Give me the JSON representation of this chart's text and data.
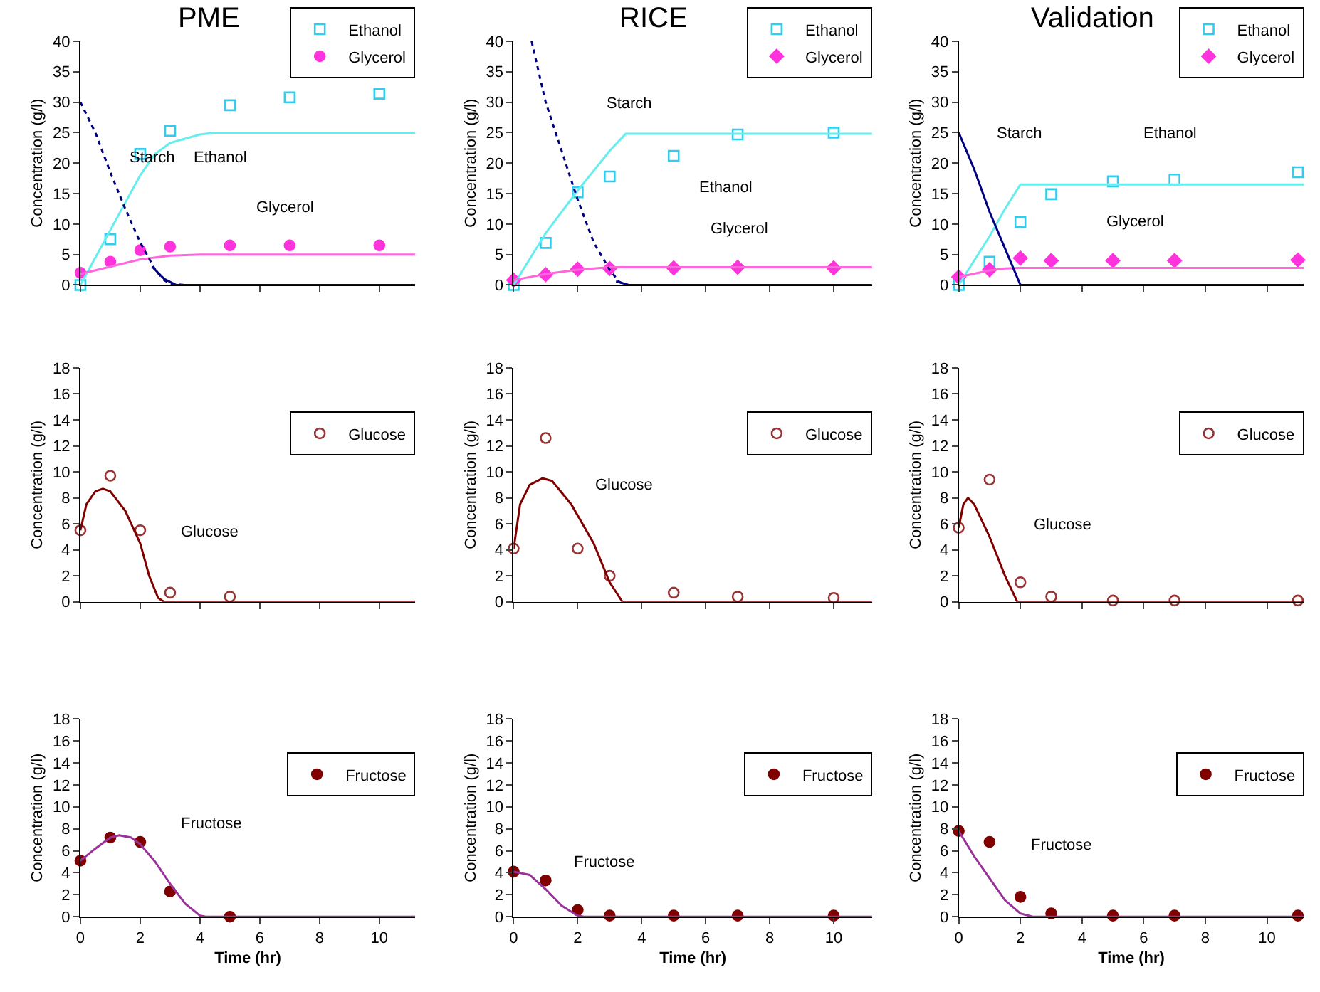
{
  "chart_data": [
    {
      "type": "scatter",
      "title": "PME",
      "ylabel": "Concentration (g/l)",
      "xlim": [
        0,
        11.2
      ],
      "xticks": [
        0,
        2,
        4,
        6,
        8,
        10
      ],
      "ylim": [
        0,
        40
      ],
      "yticks": [
        0,
        5,
        10,
        15,
        20,
        25,
        30,
        35,
        40
      ],
      "tick_labels": "y",
      "legend": "top right",
      "series": [
        {
          "name": "Ethanol",
          "type": "scatter",
          "marker": "square-open",
          "color": "#33ccee",
          "x": [
            0,
            1,
            2,
            3,
            5,
            7,
            10
          ],
          "values": [
            0,
            7.5,
            21.5,
            25.3,
            29.5,
            30.8,
            31.4
          ]
        },
        {
          "name": "Glycerol",
          "type": "scatter",
          "marker": "circle",
          "color": "#ff33dd",
          "x": [
            0,
            1,
            2,
            3,
            5,
            7,
            10
          ],
          "values": [
            2.0,
            3.8,
            5.7,
            6.3,
            6.5,
            6.5,
            6.5
          ]
        },
        {
          "type": "line",
          "line_style": "solid",
          "color": "#66eeee",
          "x": [
            0,
            1,
            2,
            2.5,
            3,
            3.5,
            4,
            4.5,
            11.2
          ],
          "values": [
            0,
            9,
            18,
            21.5,
            23.3,
            24,
            24.7,
            25,
            25
          ]
        },
        {
          "type": "line",
          "line_style": "solid",
          "color": "#ff66dd",
          "x": [
            0,
            1,
            2,
            3,
            4,
            11.2
          ],
          "values": [
            1.8,
            3,
            4.2,
            4.8,
            5,
            5
          ]
        },
        {
          "type": "line",
          "line_style": "dotted",
          "color": "#000080",
          "x": [
            0,
            0.5,
            1,
            1.5,
            2,
            2.5,
            2.8,
            3,
            3.5
          ],
          "values": [
            30,
            25,
            18.5,
            12.5,
            7,
            2.5,
            0.8,
            0.2,
            0
          ]
        },
        {
          "type": "line",
          "line_style": "solid",
          "color": "#000080",
          "x": [
            2.4,
            2.8,
            3.2,
            11.2
          ],
          "values": [
            3,
            1,
            0,
            0
          ]
        }
      ],
      "annotations": [
        "Starch",
        "Ethanol",
        "Glycerol"
      ]
    },
    {
      "type": "scatter",
      "title": "RICE",
      "ylabel": "Concentration (g/l)",
      "xlim": [
        0,
        11.2
      ],
      "xticks": [
        0,
        2,
        4,
        6,
        8,
        10
      ],
      "ylim": [
        0,
        40
      ],
      "yticks": [
        0,
        5,
        10,
        15,
        20,
        25,
        30,
        35,
        40
      ],
      "tick_labels": "y",
      "legend": "top right",
      "series": [
        {
          "name": "Ethanol",
          "type": "scatter",
          "marker": "square-open",
          "color": "#33ccee",
          "x": [
            0,
            1,
            2,
            3,
            5,
            7,
            10
          ],
          "values": [
            0,
            6.9,
            15.2,
            17.8,
            21.2,
            24.7,
            25
          ]
        },
        {
          "name": "Glycerol",
          "type": "scatter",
          "marker": "diamond",
          "color": "#ff33dd",
          "x": [
            0,
            1,
            2,
            3,
            5,
            7,
            10
          ],
          "values": [
            0.8,
            1.7,
            2.6,
            2.7,
            2.8,
            2.9,
            2.8
          ]
        },
        {
          "type": "line",
          "line_style": "solid",
          "color": "#66eeee",
          "x": [
            0,
            1,
            2,
            3,
            3.5,
            11.2
          ],
          "values": [
            0,
            8.5,
            15.5,
            22,
            24.8,
            24.8
          ]
        },
        {
          "type": "line",
          "line_style": "solid",
          "color": "#ff66dd",
          "x": [
            0,
            1,
            2,
            3,
            11.2
          ],
          "values": [
            0.8,
            1.8,
            2.5,
            2.9,
            2.9
          ]
        },
        {
          "type": "line",
          "line_style": "dotted",
          "color": "#000080",
          "x": [
            0.56,
            1,
            1.5,
            2,
            2.5,
            3,
            3.3,
            3.5
          ],
          "values": [
            40,
            30,
            22,
            14,
            7,
            2.5,
            0.5,
            0
          ]
        },
        {
          "type": "line",
          "line_style": "solid",
          "color": "#000080",
          "x": [
            3.2,
            3.6,
            11.2
          ],
          "values": [
            0.6,
            0,
            0
          ]
        }
      ],
      "annotations": [
        "Starch",
        "Ethanol",
        "Glycerol"
      ]
    },
    {
      "type": "scatter",
      "title": "Validation",
      "ylabel": "Concentration (g/l)",
      "xlim": [
        0,
        11.2
      ],
      "xticks": [
        0,
        2,
        4,
        6,
        8,
        10
      ],
      "ylim": [
        0,
        40
      ],
      "yticks": [
        0,
        5,
        10,
        15,
        20,
        25,
        30,
        35,
        40
      ],
      "tick_labels": "y",
      "legend": "top right",
      "series": [
        {
          "name": "Ethanol",
          "type": "scatter",
          "marker": "square-open",
          "color": "#33ccee",
          "x": [
            0,
            1,
            2,
            3,
            5,
            7,
            11
          ],
          "values": [
            0,
            3.8,
            10.3,
            14.9,
            17,
            17.3,
            18.5
          ]
        },
        {
          "name": "Glycerol",
          "type": "scatter",
          "marker": "diamond",
          "color": "#ff33dd",
          "x": [
            0,
            1,
            2,
            3,
            5,
            7,
            11
          ],
          "values": [
            1.3,
            2.5,
            4.4,
            4,
            4,
            4,
            4.1
          ]
        },
        {
          "type": "line",
          "line_style": "solid",
          "color": "#66eeee",
          "x": [
            0,
            1,
            1.5,
            2,
            11.2
          ],
          "values": [
            0,
            8,
            12.5,
            16.5,
            16.5
          ]
        },
        {
          "type": "line",
          "line_style": "solid",
          "color": "#ff66dd",
          "x": [
            0,
            1,
            1.5,
            2,
            11.2
          ],
          "values": [
            1.3,
            2.4,
            2.7,
            2.8,
            2.8
          ]
        },
        {
          "type": "line",
          "line_style": "solid",
          "color": "#000080",
          "x": [
            0,
            0.5,
            1,
            1.5,
            2,
            11.2
          ],
          "values": [
            25,
            19,
            12,
            6,
            0,
            0
          ]
        }
      ],
      "annotations": [
        "Starch",
        "Ethanol",
        "Glycerol"
      ]
    },
    {
      "type": "scatter",
      "ylabel": "Concentration (g/l)",
      "xlim": [
        0,
        11.2
      ],
      "xticks": [
        0,
        2,
        4,
        6,
        8,
        10
      ],
      "ylim": [
        0,
        18
      ],
      "yticks": [
        0,
        2,
        4,
        6,
        8,
        10,
        12,
        14,
        16,
        18
      ],
      "tick_labels": "y",
      "legend": "right",
      "series": [
        {
          "name": "Glucose",
          "type": "scatter",
          "marker": "circle-open",
          "color": "#993333",
          "x": [
            0,
            1,
            2,
            3,
            5
          ],
          "values": [
            5.5,
            9.7,
            5.5,
            0.7,
            0.4
          ]
        },
        {
          "type": "line",
          "line_style": "solid",
          "color": "#800000",
          "x": [
            0,
            0.2,
            0.5,
            0.75,
            1,
            1.5,
            2,
            2.3,
            2.6,
            2.8,
            11.2
          ],
          "values": [
            5.5,
            7.5,
            8.5,
            8.7,
            8.5,
            7,
            4.5,
            2,
            0.3,
            0,
            0
          ]
        }
      ],
      "annotations": [
        "Glucose"
      ]
    },
    {
      "type": "scatter",
      "ylabel": "Concentration (g/l)",
      "xlim": [
        0,
        11.2
      ],
      "xticks": [
        0,
        2,
        4,
        6,
        8,
        10
      ],
      "ylim": [
        0,
        18
      ],
      "yticks": [
        0,
        2,
        4,
        6,
        8,
        10,
        12,
        14,
        16,
        18
      ],
      "tick_labels": "y",
      "legend": "right",
      "series": [
        {
          "name": "Glucose",
          "type": "scatter",
          "marker": "circle-open",
          "color": "#993333",
          "x": [
            0,
            1,
            2,
            3,
            5,
            7,
            10
          ],
          "values": [
            4.1,
            12.6,
            4.1,
            2.0,
            0.7,
            0.4,
            0.3
          ]
        },
        {
          "type": "line",
          "line_style": "solid",
          "color": "#800000",
          "x": [
            0,
            0.2,
            0.5,
            0.9,
            1.2,
            1.8,
            2.5,
            3,
            3.4,
            11.2
          ],
          "values": [
            4.1,
            7.5,
            9,
            9.5,
            9.3,
            7.5,
            4.5,
            1.5,
            0,
            0
          ]
        }
      ],
      "annotations": [
        "Glucose"
      ]
    },
    {
      "type": "scatter",
      "ylabel": "Concentration (g/l)",
      "xlim": [
        0,
        11.2
      ],
      "xticks": [
        0,
        2,
        4,
        6,
        8,
        10
      ],
      "ylim": [
        0,
        18
      ],
      "yticks": [
        0,
        2,
        4,
        6,
        8,
        10,
        12,
        14,
        16,
        18
      ],
      "tick_labels": "y",
      "legend": "right",
      "series": [
        {
          "name": "Glucose",
          "type": "scatter",
          "marker": "circle-open",
          "color": "#993333",
          "x": [
            0,
            1,
            2,
            3,
            5,
            7,
            11
          ],
          "values": [
            5.7,
            9.4,
            1.5,
            0.4,
            0.1,
            0.1,
            0.1
          ]
        },
        {
          "type": "line",
          "line_style": "solid",
          "color": "#800000",
          "x": [
            0,
            0.15,
            0.3,
            0.5,
            1,
            1.5,
            1.9,
            11.2
          ],
          "values": [
            5.7,
            7.5,
            8,
            7.5,
            5,
            2,
            0,
            0
          ]
        }
      ],
      "annotations": [
        "Glucose"
      ]
    },
    {
      "type": "scatter",
      "ylabel": "Concentration (g/l)",
      "xlabel": "Time (hr)",
      "xlim": [
        0,
        11.2
      ],
      "xticks": [
        0,
        2,
        4,
        6,
        8,
        10
      ],
      "ylim": [
        0,
        18
      ],
      "yticks": [
        0,
        2,
        4,
        6,
        8,
        10,
        12,
        14,
        16,
        18
      ],
      "legend": "right",
      "series": [
        {
          "name": "Fructose",
          "type": "scatter",
          "marker": "circle",
          "color": "#800000",
          "x": [
            0,
            1,
            2,
            3,
            5
          ],
          "values": [
            5.1,
            7.2,
            6.8,
            2.3,
            0
          ]
        },
        {
          "type": "line",
          "line_style": "solid",
          "color": "#993399",
          "x": [
            0,
            0.5,
            1,
            1.3,
            1.7,
            2,
            2.5,
            3,
            3.5,
            4,
            4.2,
            11.2
          ],
          "values": [
            5.1,
            6.2,
            7.2,
            7.4,
            7.2,
            6.6,
            5,
            3,
            1.2,
            0.1,
            0,
            0
          ]
        }
      ],
      "annotations": [
        "Fructose"
      ]
    },
    {
      "type": "scatter",
      "ylabel": "Concentration (g/l)",
      "xlabel": "Time (hr)",
      "xlim": [
        0,
        11.2
      ],
      "xticks": [
        0,
        2,
        4,
        6,
        8,
        10
      ],
      "ylim": [
        0,
        18
      ],
      "yticks": [
        0,
        2,
        4,
        6,
        8,
        10,
        12,
        14,
        16,
        18
      ],
      "legend": "right",
      "series": [
        {
          "name": "Fructose",
          "type": "scatter",
          "marker": "circle",
          "color": "#800000",
          "x": [
            0,
            1,
            2,
            3,
            5,
            7,
            10
          ],
          "values": [
            4.1,
            3.3,
            0.6,
            0.1,
            0.1,
            0.1,
            0.1
          ]
        },
        {
          "type": "line",
          "line_style": "solid",
          "color": "#993399",
          "x": [
            0,
            0.5,
            1,
            1.5,
            2,
            2.2,
            11.2
          ],
          "values": [
            4.1,
            3.8,
            2.5,
            1,
            0.1,
            0,
            0
          ]
        }
      ],
      "annotations": [
        "Fructose"
      ]
    },
    {
      "type": "scatter",
      "ylabel": "Concentration (g/l)",
      "xlabel": "Time (hr)",
      "xlim": [
        0,
        11.2
      ],
      "xticks": [
        0,
        2,
        4,
        6,
        8,
        10
      ],
      "ylim": [
        0,
        18
      ],
      "yticks": [
        0,
        2,
        4,
        6,
        8,
        10,
        12,
        14,
        16,
        18
      ],
      "legend": "right",
      "series": [
        {
          "name": "Fructose",
          "type": "scatter",
          "marker": "circle",
          "color": "#800000",
          "x": [
            0,
            1,
            2,
            3,
            5,
            7,
            11
          ],
          "values": [
            7.8,
            6.8,
            1.8,
            0.3,
            0.1,
            0.1,
            0.1
          ]
        },
        {
          "type": "line",
          "line_style": "solid",
          "color": "#993399",
          "x": [
            0,
            0.5,
            1,
            1.5,
            2,
            2.4,
            11.2
          ],
          "values": [
            7.8,
            5.5,
            3.5,
            1.5,
            0.3,
            0,
            0
          ]
        }
      ],
      "annotations": [
        "Fructose"
      ]
    }
  ]
}
